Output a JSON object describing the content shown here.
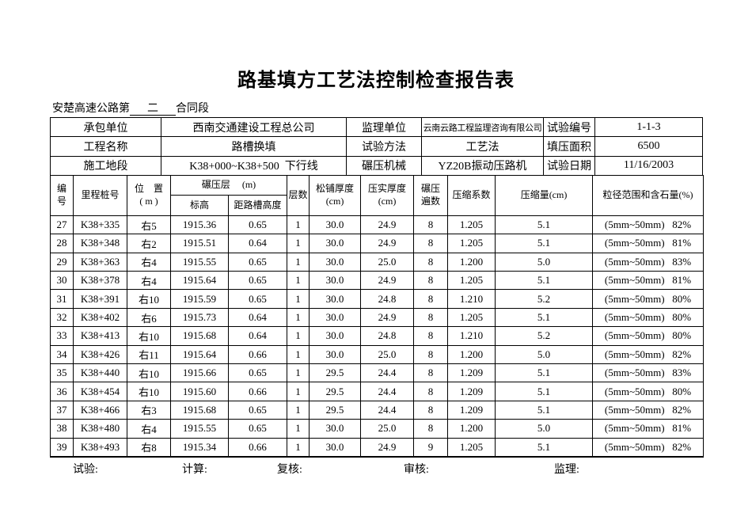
{
  "doc": {
    "title": "路基填方工艺法控制检查报告表",
    "contract_prefix": "安楚高速公路第",
    "contract_blank": "二",
    "contract_suffix": "合同段"
  },
  "info": {
    "rows": [
      [
        "承包单位",
        "西南交通建设工程总公司",
        "监理单位",
        "云南云路工程监理咨询有限公司",
        "试验编号",
        "1-1-3"
      ],
      [
        "工程名称",
        "路槽换填",
        "试验方法",
        "工艺法",
        "填压面积",
        "6500"
      ],
      [
        "施工地段",
        "K38+000~K38+500  下行线",
        "碾压机械",
        "YZ20B振动压路机",
        "试验日期",
        "11/16/2003"
      ]
    ]
  },
  "table": {
    "columns": {
      "no": [
        "编",
        "号"
      ],
      "station": "里程桩号",
      "position": [
        "位　置",
        "( m )"
      ],
      "rolling_layer_group": "碾压层　 (m)",
      "elevation": "标高",
      "trough_height": "距路槽高度",
      "layers": "层数",
      "loose_thickness": [
        "松铺厚度",
        "(cm)"
      ],
      "compacted_thickness": [
        "压实厚度",
        "(cm)"
      ],
      "rolling_passes": [
        "碾压",
        "遍数"
      ],
      "compression_coefficient": "压缩系数",
      "compression_amount": "压缩量(cm)",
      "particle_range": "粒径范围和含石量(%)"
    },
    "rows": [
      [
        "27",
        "K38+335",
        "右5",
        "1915.36",
        "0.65",
        "1",
        "30.0",
        "24.9",
        "8",
        "1.205",
        "5.1",
        "(5mm~50mm)   82%"
      ],
      [
        "28",
        "K38+348",
        "右2",
        "1915.51",
        "0.64",
        "1",
        "30.0",
        "24.9",
        "8",
        "1.205",
        "5.1",
        "(5mm~50mm)   81%"
      ],
      [
        "29",
        "K38+363",
        "右4",
        "1915.55",
        "0.65",
        "1",
        "30.0",
        "25.0",
        "8",
        "1.200",
        "5.0",
        "(5mm~50mm)   83%"
      ],
      [
        "30",
        "K38+378",
        "右4",
        "1915.64",
        "0.65",
        "1",
        "30.0",
        "24.9",
        "8",
        "1.205",
        "5.1",
        "(5mm~50mm)   81%"
      ],
      [
        "31",
        "K38+391",
        "右10",
        "1915.59",
        "0.65",
        "1",
        "30.0",
        "24.8",
        "8",
        "1.210",
        "5.2",
        "(5mm~50mm)   80%"
      ],
      [
        "32",
        "K38+402",
        "右6",
        "1915.73",
        "0.64",
        "1",
        "30.0",
        "24.9",
        "8",
        "1.205",
        "5.1",
        "(5mm~50mm)   80%"
      ],
      [
        "33",
        "K38+413",
        "右10",
        "1915.68",
        "0.64",
        "1",
        "30.0",
        "24.8",
        "8",
        "1.210",
        "5.2",
        "(5mm~50mm)   80%"
      ],
      [
        "34",
        "K38+426",
        "右11",
        "1915.64",
        "0.66",
        "1",
        "30.0",
        "25.0",
        "8",
        "1.200",
        "5.0",
        "(5mm~50mm)   82%"
      ],
      [
        "35",
        "K38+440",
        "右10",
        "1915.66",
        "0.65",
        "1",
        "29.5",
        "24.4",
        "8",
        "1.209",
        "5.1",
        "(5mm~50mm)   83%"
      ],
      [
        "36",
        "K38+454",
        "右10",
        "1915.60",
        "0.66",
        "1",
        "29.5",
        "24.4",
        "8",
        "1.209",
        "5.1",
        "(5mm~50mm)   80%"
      ],
      [
        "37",
        "K38+466",
        "右3",
        "1915.68",
        "0.65",
        "1",
        "29.5",
        "24.4",
        "8",
        "1.209",
        "5.1",
        "(5mm~50mm)   82%"
      ],
      [
        "38",
        "K38+480",
        "右4",
        "1915.55",
        "0.65",
        "1",
        "30.0",
        "25.0",
        "8",
        "1.200",
        "5.0",
        "(5mm~50mm)   81%"
      ],
      [
        "39",
        "K38+493",
        "右8",
        "1915.34",
        "0.66",
        "1",
        "30.0",
        "24.9",
        "9",
        "1.205",
        "5.1",
        "(5mm~50mm)   82%"
      ]
    ]
  },
  "footer": {
    "labels": [
      "试验:",
      "计算:",
      "复核:",
      "审核:",
      "监理:"
    ]
  }
}
